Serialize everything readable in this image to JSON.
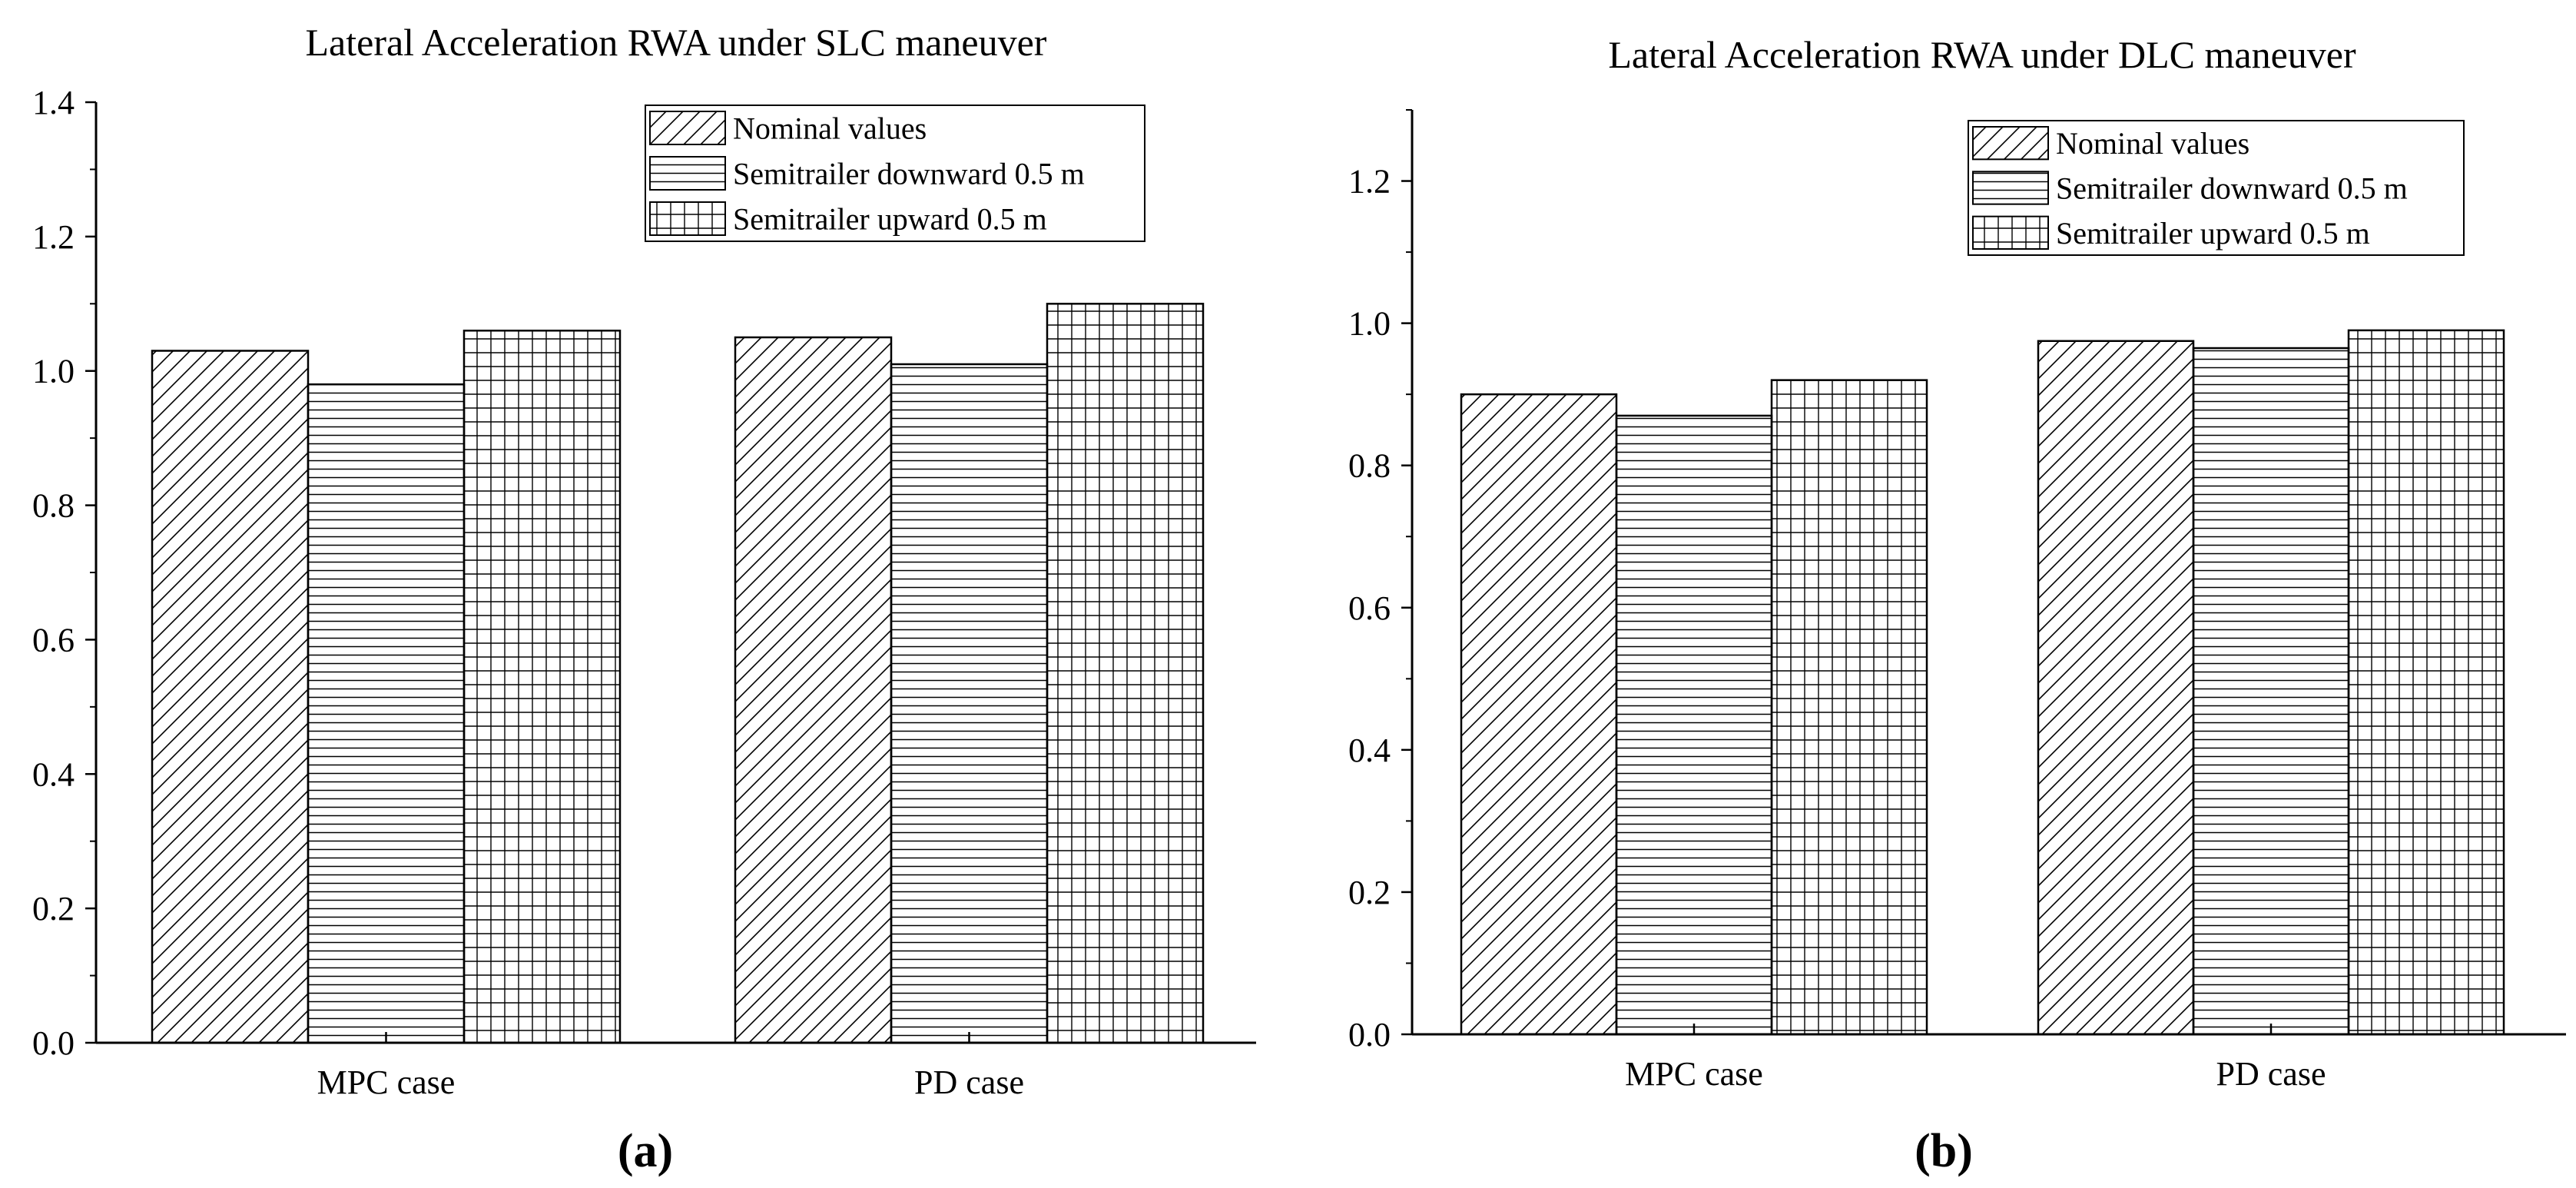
{
  "chart_data": [
    {
      "type": "bar",
      "panel_label": "(a)",
      "title": "Lateral Acceleration RWA under SLC maneuver",
      "xlabel": "",
      "ylabel": "",
      "categories": [
        "MPC case",
        "PD case"
      ],
      "series": [
        {
          "name": "Nominal values",
          "pattern": "diagonal",
          "values": [
            1.03,
            1.05
          ]
        },
        {
          "name": "Semitrailer downward 0.5 m",
          "pattern": "horizontal",
          "values": [
            0.98,
            1.01
          ]
        },
        {
          "name": "Semitrailer upward 0.5 m",
          "pattern": "grid",
          "values": [
            1.06,
            1.1
          ]
        }
      ],
      "ylim": [
        0,
        1.4
      ],
      "yticks": [
        "0.0",
        "0.2",
        "0.4",
        "0.6",
        "0.8",
        "1.0",
        "1.2",
        "1.4"
      ],
      "ytick_values": [
        0,
        0.2,
        0.4,
        0.6,
        0.8,
        1.0,
        1.2,
        1.4
      ],
      "legend_position": "top-right",
      "grid": false
    },
    {
      "type": "bar",
      "panel_label": "(b)",
      "title": "Lateral Acceleration RWA under DLC maneuver",
      "xlabel": "",
      "ylabel": "",
      "categories": [
        "MPC case",
        "PD case"
      ],
      "series": [
        {
          "name": "Nominal values",
          "pattern": "diagonal",
          "values": [
            0.9,
            0.975
          ]
        },
        {
          "name": "Semitrailer downward 0.5 m",
          "pattern": "horizontal",
          "values": [
            0.87,
            0.965
          ]
        },
        {
          "name": "Semitrailer upward 0.5 m",
          "pattern": "grid",
          "values": [
            0.92,
            0.99
          ]
        }
      ],
      "ylim": [
        0,
        1.3
      ],
      "yticks": [
        "0.0",
        "0.2",
        "0.4",
        "0.6",
        "0.8",
        "1.0",
        "1.2"
      ],
      "ytick_values": [
        0,
        0.2,
        0.4,
        0.6,
        0.8,
        1.0,
        1.2
      ],
      "legend_position": "top-right",
      "grid": false
    }
  ]
}
